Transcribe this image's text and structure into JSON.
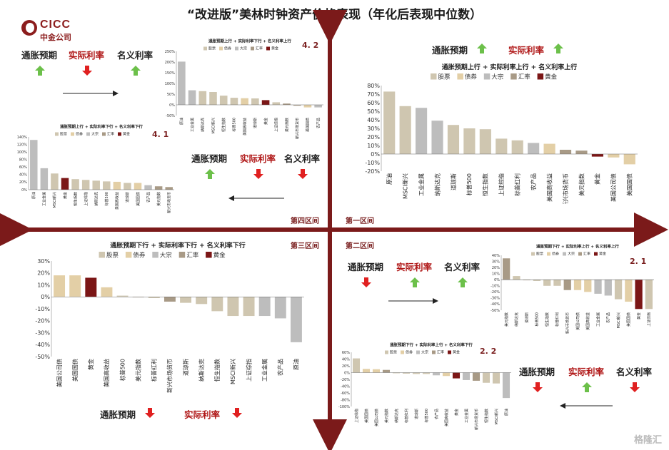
{
  "title": "“改进版”美林时钟资产价格表现（年化后表现中位数）",
  "logo": {
    "en": "CICC",
    "zh": "中金公司"
  },
  "watermark": "格隆汇",
  "colors": {
    "stock": "#cfc6b0",
    "bond": "#e3cfa6",
    "commodity": "#bdbdbd",
    "fx": "#a89a86",
    "gold": "#7b1616",
    "axis": "#7b1a1a",
    "up": "#6cc04a",
    "down": "#e02020"
  },
  "quadrants": {
    "q1": "第一区间",
    "q2": "第二区间",
    "q3": "第三区间",
    "q4": "第四区间"
  },
  "indicators": {
    "q1_top": [
      {
        "label": "通胀预期",
        "dir": "up"
      },
      {
        "label": "实际利率",
        "dir": "up",
        "red": true
      }
    ],
    "q4_top": [
      {
        "label": "通胀预期",
        "dir": "up"
      },
      {
        "label": "实际利率",
        "dir": "down",
        "red": true
      },
      {
        "label": "名义利率",
        "dir": "up"
      }
    ],
    "q4_mid": [
      {
        "label": "通胀预期",
        "dir": "up"
      },
      {
        "label": "实际利率",
        "dir": "down",
        "red": true
      },
      {
        "label": "名义利率",
        "dir": "down"
      }
    ],
    "q2_top": [
      {
        "label": "通胀预期",
        "dir": "down"
      },
      {
        "label": "实际利率",
        "dir": "up",
        "red": true
      },
      {
        "label": "名义利率",
        "dir": "up"
      }
    ],
    "q2_bot": [
      {
        "label": "通胀预期",
        "dir": "down"
      },
      {
        "label": "实际利率",
        "dir": "up",
        "red": true
      },
      {
        "label": "名义利率",
        "dir": "down"
      }
    ],
    "q3_bot": [
      {
        "label": "通胀预期",
        "dir": "down"
      },
      {
        "label": "实际利率",
        "dir": "down",
        "red": true
      }
    ]
  },
  "chart_data": [
    {
      "id": "c42",
      "tag": "4. 2",
      "type": "bar",
      "title": "通胀预期上行 + 实际利率下行 + 名义利率上行",
      "legend": [
        "股票",
        "债券",
        "大宗",
        "汇率",
        "黄金"
      ],
      "ylim": [
        -50,
        250
      ],
      "yticks": [
        -50,
        0,
        50,
        100,
        150,
        200,
        250
      ],
      "categories": [
        "原油",
        "工业金属",
        "纳斯达克",
        "MSCI新兴",
        "恒生指数",
        "标普500",
        "美国高收益",
        "道琼斯",
        "黄金",
        "上证综指",
        "美元指数",
        "新兴市场货币",
        "美国国债",
        "农产品"
      ],
      "values": [
        202,
        68,
        64,
        60,
        43,
        33,
        31,
        30,
        22,
        12,
        6,
        -4,
        -12,
        -12
      ],
      "kinds": [
        "commodity",
        "commodity",
        "stock",
        "stock",
        "stock",
        "stock",
        "bond",
        "stock",
        "gold",
        "stock",
        "fx",
        "fx",
        "bond",
        "commodity"
      ]
    },
    {
      "id": "c41",
      "tag": "4. 1",
      "type": "bar",
      "title": "通胀预期上行 + 实际利率下行 + 名义利率下行",
      "legend": [
        "股票",
        "债券",
        "大宗",
        "汇率",
        "黄金"
      ],
      "ylim": [
        0,
        140
      ],
      "yticks": [
        0,
        20,
        40,
        60,
        80,
        100,
        120,
        140
      ],
      "categories": [
        "原油",
        "工业金属",
        "MSCI新兴",
        "黄金",
        "恒生指数",
        "上证综指",
        "纳斯达克",
        "标普500",
        "美国高收益",
        "道琼斯",
        "美国国债",
        "农产品",
        "美元指数",
        "新兴市场货币"
      ],
      "values": [
        132,
        57,
        43,
        31,
        28,
        26,
        24,
        22,
        21,
        18,
        18,
        12,
        9,
        7
      ],
      "kinds": [
        "commodity",
        "commodity",
        "stock",
        "gold",
        "stock",
        "stock",
        "stock",
        "stock",
        "bond",
        "stock",
        "bond",
        "commodity",
        "fx",
        "fx"
      ]
    },
    {
      "id": "c1",
      "tag": "",
      "type": "bar",
      "title": "通胀预期上行 + 实际利率上行 + 名义利率上行",
      "legend": [
        "股票",
        "债券",
        "大宗",
        "汇率",
        "黄金"
      ],
      "ylim": [
        -20,
        80
      ],
      "yticks": [
        -20,
        -10,
        0,
        10,
        20,
        30,
        40,
        50,
        60,
        70,
        80
      ],
      "categories": [
        "原油",
        "MSCI新兴",
        "工业金属",
        "纳斯达克",
        "道琼斯",
        "标普500",
        "恒生指数",
        "上证综指",
        "标普红利",
        "农产品",
        "美国高收益",
        "新兴市场货币",
        "美元指数",
        "黄金",
        "美国公司债",
        "美国国债"
      ],
      "values": [
        73,
        56,
        54,
        39,
        34,
        30,
        29,
        18,
        16,
        13,
        12,
        5,
        4,
        -3,
        -4,
        -12
      ],
      "kinds": [
        "stock",
        "stock",
        "commodity",
        "commodity",
        "stock",
        "stock",
        "stock",
        "stock",
        "stock",
        "commodity",
        "bond",
        "fx",
        "fx",
        "gold",
        "bond",
        "bond"
      ]
    },
    {
      "id": "c3",
      "tag": "",
      "type": "bar",
      "title": "通胀预期下行 + 实际利率下行 + 名义利率下行",
      "legend": [
        "股票",
        "债券",
        "大宗",
        "汇率",
        "黄金"
      ],
      "ylim": [
        -50,
        30
      ],
      "yticks": [
        -50,
        -40,
        -30,
        -20,
        -10,
        0,
        10,
        20,
        30
      ],
      "categories": [
        "美国公司债",
        "美国国债",
        "黄金",
        "美国高收益",
        "标普500",
        "美元指数",
        "标普红利",
        "新兴市场货币",
        "道琼斯",
        "纳斯达克",
        "恒生指数",
        "MSCI新兴",
        "上证综指",
        "工业金属",
        "农产品",
        "原油"
      ],
      "values": [
        18,
        18,
        16,
        8,
        1,
        0,
        -1,
        -4,
        -5,
        -6,
        -12,
        -16,
        -16,
        -16,
        -18,
        -38
      ],
      "kinds": [
        "bond",
        "bond",
        "gold",
        "bond",
        "stock",
        "fx",
        "stock",
        "fx",
        "stock",
        "stock",
        "stock",
        "stock",
        "stock",
        "commodity",
        "commodity",
        "commodity"
      ]
    },
    {
      "id": "c21",
      "tag": "2. 1",
      "type": "bar",
      "title": "通胀预期下行 + 实际利率上行 + 名义利率上行",
      "legend": [
        "股票",
        "债券",
        "大宗",
        "汇率",
        "黄金"
      ],
      "ylim": [
        -50,
        40
      ],
      "yticks": [
        -50,
        -40,
        -30,
        -20,
        -10,
        0,
        10,
        20,
        30,
        40
      ],
      "categories": [
        "美元指数",
        "纳斯达克",
        "道琼斯",
        "标普500",
        "恒生指数",
        "标普红利",
        "新兴市场货币",
        "美国公司债",
        "美国高收益",
        "工业金属",
        "农产品",
        "MSCI新兴",
        "美国国债",
        "黄金",
        "上证综指"
      ],
      "values": [
        35,
        6,
        -1,
        -2,
        -10,
        -10,
        -17,
        -17,
        -20,
        -23,
        -26,
        -32,
        -36,
        -48,
        -48
      ],
      "kinds": [
        "fx",
        "stock",
        "stock",
        "stock",
        "stock",
        "stock",
        "fx",
        "bond",
        "bond",
        "commodity",
        "commodity",
        "stock",
        "bond",
        "gold",
        "stock"
      ]
    },
    {
      "id": "c22",
      "tag": "2. 2",
      "type": "bar",
      "title": "通胀预期下行 + 实际利率上行 + 名义利率下行",
      "legend": [
        "股票",
        "债券",
        "大宗",
        "汇率",
        "黄金"
      ],
      "ylim": [
        -100,
        60
      ],
      "yticks": [
        -100,
        -80,
        -60,
        -40,
        -20,
        0,
        20,
        40,
        60
      ],
      "categories": [
        "上证综指",
        "美国国债",
        "美国公司债",
        "美元指数",
        "纳斯达克",
        "标普红利",
        "道琼斯",
        "标普500",
        "农产品",
        "美国高收益",
        "黄金",
        "工业金属",
        "新兴市场货币",
        "恒生指数",
        "MSCI新兴",
        "原油"
      ],
      "values": [
        42,
        11,
        10,
        8,
        -2,
        -3,
        -4,
        -4,
        -8,
        -10,
        -17,
        -22,
        -24,
        -30,
        -32,
        -75
      ],
      "kinds": [
        "stock",
        "bond",
        "bond",
        "fx",
        "stock",
        "stock",
        "stock",
        "stock",
        "commodity",
        "bond",
        "gold",
        "commodity",
        "fx",
        "stock",
        "stock",
        "commodity"
      ]
    }
  ]
}
